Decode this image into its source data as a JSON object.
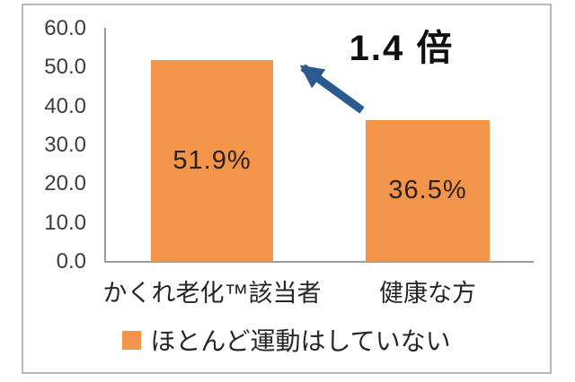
{
  "chart_data": {
    "type": "bar",
    "categories": [
      "かくれ老化™該当者",
      "健康な方"
    ],
    "values": [
      51.9,
      36.5
    ],
    "value_labels": [
      "51.9%",
      "36.5%"
    ],
    "ylim": [
      0,
      60
    ],
    "ytick_step": 10,
    "yticks": [
      "60.0",
      "50.0",
      "40.0",
      "30.0",
      "20.0",
      "10.0",
      "0.0"
    ],
    "legend": [
      {
        "label": "ほとんど運動はしていない",
        "color": "#F2954B"
      }
    ],
    "legend_position": "bottom",
    "grid": false,
    "bar_color": "#F2954B",
    "axis_line_color": "#9c9c9c",
    "annotation": {
      "text": "1.4 倍",
      "arrow_color": "#2B5A91"
    }
  }
}
